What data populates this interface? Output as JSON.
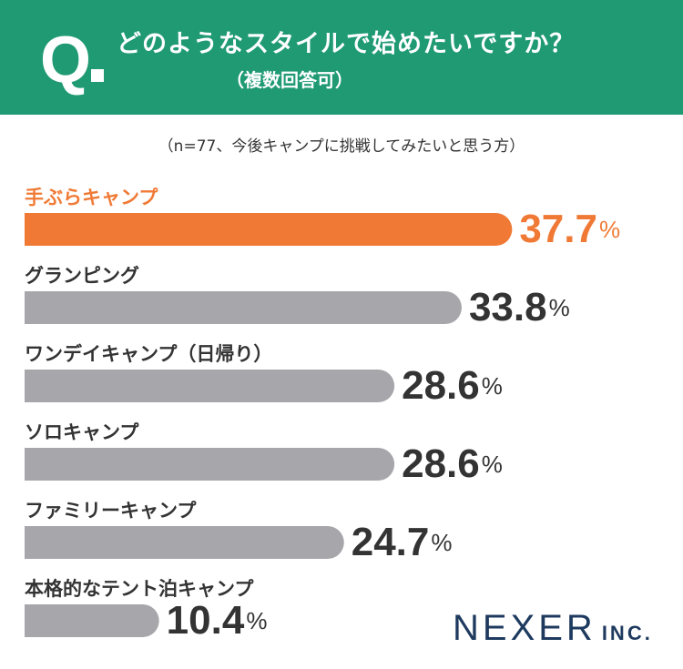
{
  "header": {
    "q_mark": "Q",
    "question": "どのようなスタイルで始めたいですか？",
    "sub": "（複数回答可）"
  },
  "note": "（n=77、今後キャンプに挑戦してみたいと思う方）",
  "logo": {
    "main": "NEXER",
    "sub": "INC."
  },
  "colors": {
    "header_bg": "#1f9a73",
    "highlight": "#f07a35",
    "bar": "#a6a6ab",
    "text": "#333333"
  },
  "chart_data": {
    "type": "bar",
    "orientation": "horizontal",
    "xlim": [
      0,
      40
    ],
    "unit": "%",
    "grid": false,
    "categories": [
      "手ぶらキャンプ",
      "グランピング",
      "ワンデイキャンプ（日帰り）",
      "ソロキャンプ",
      "ファミリーキャンプ",
      "本格的なテント泊キャンプ"
    ],
    "values": [
      37.7,
      33.8,
      28.6,
      28.6,
      24.7,
      10.4
    ],
    "highlight_index": 0
  }
}
